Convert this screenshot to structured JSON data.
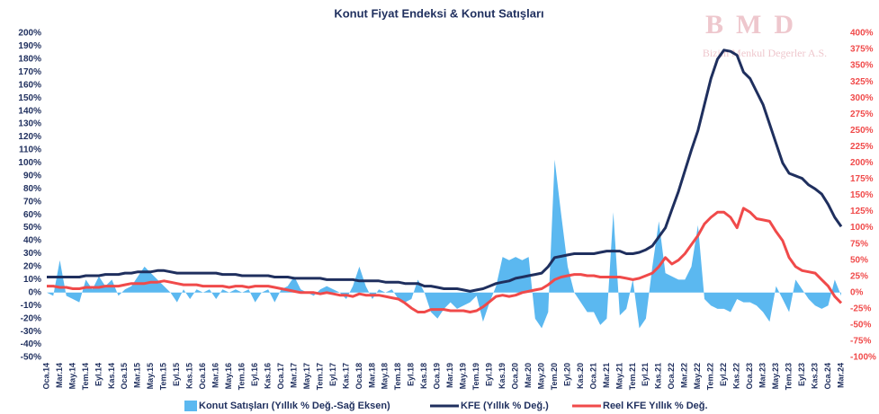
{
  "chart_data": {
    "type": "combo",
    "title": "Konut Fiyat Endeksi & Konut Satışları",
    "watermark": {
      "logo": "BMD",
      "text": "Bizim Menkul Degerler A.S."
    },
    "categories": [
      "Oca.14",
      null,
      "Mar.14",
      null,
      "May.14",
      null,
      "Tem.14",
      null,
      "Eyl.14",
      null,
      "Kas.14",
      null,
      "Oca.15",
      null,
      "Mar.15",
      null,
      "May.15",
      null,
      "Tem.15",
      null,
      "Eyl.15",
      null,
      "Kas.15",
      null,
      "Oca.16",
      null,
      "Mar.16",
      null,
      "May.16",
      null,
      "Tem.16",
      null,
      "Eyl.16",
      null,
      "Kas.16",
      null,
      "Oca.17",
      null,
      "Mar.17",
      null,
      "May.17",
      null,
      "Tem.17",
      null,
      "Eyl.17",
      null,
      "Kas.17",
      null,
      "Oca.18",
      null,
      "Mar.18",
      null,
      "May.18",
      null,
      "Tem.18",
      null,
      "Eyl.18",
      null,
      "Kas.18",
      null,
      "Oca.19",
      null,
      "Mar.19",
      null,
      "May.19",
      null,
      "Tem.19",
      null,
      "Eyl.19",
      null,
      "Kas.19",
      null,
      "Oca.20",
      null,
      "Mar.20",
      null,
      "May.20",
      null,
      "Tem.20",
      null,
      "Eyl.20",
      null,
      "Kas.20",
      null,
      "Oca.21",
      null,
      "Mar.21",
      null,
      "May.21",
      null,
      "Tem.21",
      null,
      "Eyl.21",
      null,
      "Kas.21",
      null,
      "Oca.22",
      null,
      "Mar.22",
      null,
      "May.22",
      null,
      "Tem.22",
      null,
      "Eyl.22",
      null,
      "Kas.22",
      null,
      "Oca.23",
      null,
      "Mar.23",
      null,
      "May.23",
      null,
      "Tem.23",
      null,
      "Eyl.23",
      null,
      "Kas.23",
      null,
      "Oca.24",
      null,
      "Mar.24"
    ],
    "series": [
      {
        "name": "Konut Satışları (Yıllık % Değ.-Sağ Eksen)",
        "kind": "area",
        "axis": "y2",
        "color": "#5bb8f0",
        "values": [
          0,
          -5,
          50,
          -5,
          -10,
          -15,
          20,
          5,
          25,
          10,
          20,
          -5,
          5,
          10,
          25,
          40,
          30,
          20,
          10,
          0,
          -15,
          5,
          -10,
          5,
          0,
          5,
          -10,
          5,
          0,
          5,
          0,
          5,
          -15,
          0,
          5,
          -15,
          5,
          10,
          25,
          5,
          0,
          -5,
          5,
          10,
          5,
          0,
          -10,
          10,
          40,
          10,
          -10,
          5,
          0,
          5,
          -10,
          -15,
          -10,
          20,
          0,
          -30,
          -40,
          -25,
          -15,
          -25,
          -20,
          -15,
          -5,
          -45,
          -15,
          10,
          55,
          50,
          55,
          50,
          55,
          -40,
          -55,
          -30,
          205,
          120,
          40,
          0,
          -15,
          -30,
          -30,
          -50,
          -40,
          124,
          -35,
          -25,
          20,
          -55,
          -40,
          40,
          110,
          30,
          25,
          20,
          20,
          40,
          104,
          -10,
          -20,
          -25,
          -25,
          -30,
          -10,
          -15,
          -15,
          -20,
          -30,
          -45,
          10,
          -10,
          -30,
          20,
          5,
          -10,
          -20,
          -25,
          -20,
          20,
          -5
        ]
      },
      {
        "name": "KFE (Yıllık % Değ.)",
        "kind": "line",
        "axis": "y",
        "color": "#1f2f5e",
        "values": [
          12,
          12,
          12,
          12,
          12,
          12,
          13,
          13,
          13,
          14,
          14,
          14,
          15,
          15,
          16,
          16,
          16,
          17,
          17,
          16,
          15,
          15,
          15,
          15,
          15,
          15,
          15,
          14,
          14,
          14,
          13,
          13,
          13,
          13,
          13,
          12,
          12,
          12,
          11,
          11,
          11,
          11,
          11,
          10,
          10,
          10,
          10,
          10,
          9,
          9,
          9,
          9,
          8,
          8,
          8,
          7,
          7,
          7,
          5,
          5,
          4,
          3,
          3,
          3,
          2,
          1,
          2,
          3,
          5,
          7,
          8,
          9,
          11,
          12,
          13,
          14,
          15,
          20,
          27,
          28,
          29,
          30,
          30,
          30,
          30,
          31,
          32,
          32,
          32,
          30,
          30,
          31,
          33,
          36,
          43,
          50,
          64,
          78,
          94,
          110,
          125,
          145,
          165,
          180,
          187,
          186,
          183,
          170,
          165,
          155,
          145,
          130,
          115,
          100,
          92,
          90,
          88,
          83,
          80,
          76,
          68,
          58,
          51
        ]
      },
      {
        "name": "Reel KFE Yıllık % Değ.",
        "kind": "line",
        "axis": "y",
        "color": "#f04a4a",
        "values": [
          5,
          5,
          4,
          4,
          3,
          3,
          4,
          4,
          4,
          5,
          5,
          5,
          6,
          7,
          7,
          7,
          8,
          8,
          9,
          8,
          7,
          6,
          6,
          6,
          5,
          5,
          5,
          5,
          4,
          5,
          5,
          4,
          5,
          5,
          5,
          4,
          3,
          2,
          1,
          0,
          0,
          0,
          -1,
          0,
          -1,
          -2,
          -2,
          -3,
          -1,
          -2,
          -2,
          -2,
          -3,
          -4,
          -5,
          -8,
          -12,
          -15,
          -15,
          -13,
          -13,
          -13,
          -14,
          -14,
          -14,
          -15,
          -14,
          -11,
          -7,
          -3,
          -2,
          -3,
          -2,
          0,
          1,
          2,
          3,
          6,
          10,
          12,
          13,
          14,
          14,
          13,
          13,
          12,
          12,
          12,
          12,
          11,
          10,
          11,
          13,
          15,
          20,
          27,
          22,
          25,
          30,
          37,
          44,
          53,
          58,
          62,
          62,
          58,
          50,
          65,
          62,
          57,
          56,
          55,
          47,
          40,
          27,
          20,
          17,
          16,
          15,
          10,
          5,
          -3,
          -8
        ]
      }
    ],
    "ylim": [
      -50,
      200
    ],
    "yticks": [
      {
        "value": 200,
        "label": "200%"
      },
      {
        "value": 190,
        "label": "190%"
      },
      {
        "value": 180,
        "label": "180%"
      },
      {
        "value": 170,
        "label": "170%"
      },
      {
        "value": 160,
        "label": "160%"
      },
      {
        "value": 150,
        "label": "150%"
      },
      {
        "value": 140,
        "label": "140%"
      },
      {
        "value": 130,
        "label": "130%"
      },
      {
        "value": 120,
        "label": "120%"
      },
      {
        "value": 110,
        "label": "110%"
      },
      {
        "value": 100,
        "label": "100%"
      },
      {
        "value": 90,
        "label": "90%"
      },
      {
        "value": 80,
        "label": "80%"
      },
      {
        "value": 70,
        "label": "70%"
      },
      {
        "value": 60,
        "label": "60%"
      },
      {
        "value": 50,
        "label": "50%"
      },
      {
        "value": 40,
        "label": "40%"
      },
      {
        "value": 30,
        "label": "30%"
      },
      {
        "value": 20,
        "label": "20%"
      },
      {
        "value": 10,
        "label": "10%"
      },
      {
        "value": 0,
        "label": "0%"
      },
      {
        "value": -10,
        "label": "-10%"
      },
      {
        "value": -20,
        "label": "-20%"
      },
      {
        "value": -30,
        "label": "-30%"
      },
      {
        "value": -40,
        "label": "-40%"
      },
      {
        "value": -50,
        "label": "-50%"
      }
    ],
    "y2lim": [
      -100,
      400
    ],
    "y2ticks": [
      {
        "value": 400,
        "label": "400%"
      },
      {
        "value": 375,
        "label": "375%"
      },
      {
        "value": 350,
        "label": "350%"
      },
      {
        "value": 325,
        "label": "325%"
      },
      {
        "value": 300,
        "label": "300%"
      },
      {
        "value": 275,
        "label": "275%"
      },
      {
        "value": 250,
        "label": "250%"
      },
      {
        "value": 225,
        "label": "225%"
      },
      {
        "value": 200,
        "label": "200%"
      },
      {
        "value": 175,
        "label": "175%"
      },
      {
        "value": 150,
        "label": "150%"
      },
      {
        "value": 125,
        "label": "125%"
      },
      {
        "value": 100,
        "label": "100%"
      },
      {
        "value": 75,
        "label": "75%"
      },
      {
        "value": 50,
        "label": "50%"
      },
      {
        "value": 25,
        "label": "25%"
      },
      {
        "value": 0,
        "label": "0%"
      },
      {
        "value": -25,
        "label": "-25%"
      },
      {
        "value": -50,
        "label": "-50%"
      },
      {
        "value": -75,
        "label": "-75%"
      },
      {
        "value": -100,
        "label": "-100%"
      }
    ],
    "y2tick_color": "#f04a4a",
    "grid": false,
    "legend": "bottom"
  }
}
